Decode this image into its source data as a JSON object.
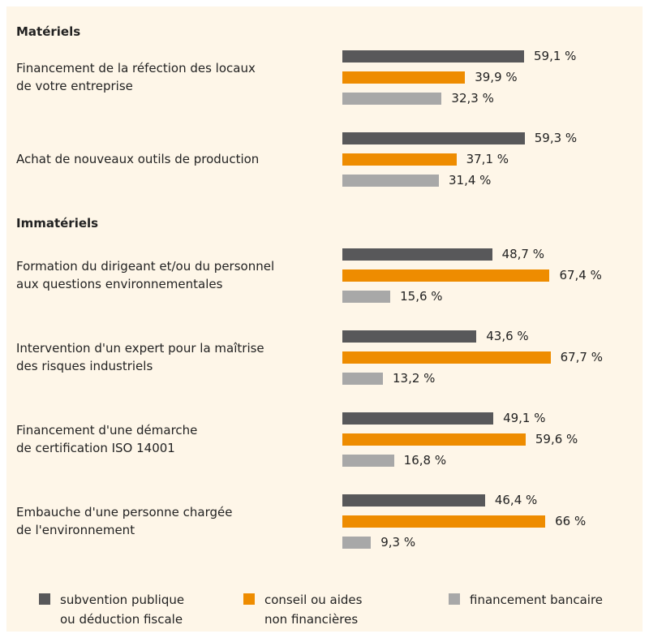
{
  "chart_data": [
    {
      "type": "bar",
      "orientation": "horizontal",
      "title": "Matériels",
      "categories": [
        "Financement de la réfection des locaux\nde votre entreprise",
        "Achat de nouveaux outils de production"
      ],
      "series": [
        {
          "name": "subvention publique\nou déduction fiscale",
          "color": "#58585a",
          "values": [
            59.1,
            59.3
          ],
          "value_labels": [
            "59,1 %",
            "59,3 %"
          ]
        },
        {
          "name": "conseil ou aides\nnon financières",
          "color": "#ee8c00",
          "values": [
            39.9,
            37.1
          ],
          "value_labels": [
            "39,9 %",
            "37,1 %"
          ]
        },
        {
          "name": "financement bancaire",
          "color": "#a8a8a8",
          "values": [
            32.3,
            31.4
          ],
          "value_labels": [
            "32,3 %",
            "31,4 %"
          ]
        }
      ]
    },
    {
      "type": "bar",
      "orientation": "horizontal",
      "title": "Immatériels",
      "categories": [
        "Formation du dirigeant et/ou du personnel\naux questions environnementales",
        "Intervention d'un expert pour la maîtrise\ndes risques industriels",
        "Financement d'une démarche\nde certification ISO 14001",
        "Embauche d'une personne chargée\nde l'environnement"
      ],
      "series": [
        {
          "color": "#58585a",
          "values": [
            48.7,
            43.6,
            49.1,
            46.4
          ],
          "value_labels": [
            "48,7 %",
            "43,6 %",
            "49,1 %",
            "46,4 %"
          ]
        },
        {
          "color": "#ee8c00",
          "values": [
            67.4,
            67.7,
            59.6,
            66
          ],
          "value_labels": [
            "67,4 %",
            "67,7 %",
            "59,6 %",
            "66 %"
          ]
        },
        {
          "color": "#a8a8a8",
          "values": [
            15.6,
            13.2,
            16.8,
            9.3
          ],
          "value_labels": [
            "15,6 %",
            "13,2 %",
            "16,8 %",
            "9,3 %"
          ]
        }
      ]
    }
  ]
}
